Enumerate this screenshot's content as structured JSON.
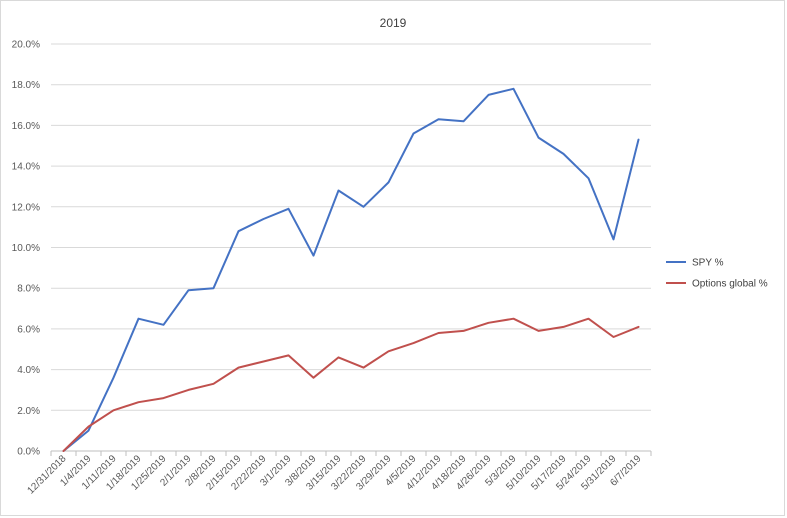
{
  "chart_data": {
    "type": "line",
    "title": "2019",
    "xlabel": "",
    "ylabel": "",
    "categories": [
      "12/31/2018",
      "1/4/2019",
      "1/11/2019",
      "1/18/2019",
      "1/25/2019",
      "2/1/2019",
      "2/8/2019",
      "2/15/2019",
      "2/22/2019",
      "3/1/2019",
      "3/8/2019",
      "3/15/2019",
      "3/22/2019",
      "3/29/2019",
      "4/5/2019",
      "4/12/2019",
      "4/18/2019",
      "4/26/2019",
      "5/3/2019",
      "5/10/2019",
      "5/17/2019",
      "5/24/2019",
      "5/31/2019",
      "6/7/2019"
    ],
    "ylim": [
      0,
      0.2
    ],
    "yticks": [
      "0.0%",
      "2.0%",
      "4.0%",
      "6.0%",
      "8.0%",
      "10.0%",
      "12.0%",
      "14.0%",
      "16.0%",
      "18.0%",
      "20.0%"
    ],
    "grid": true,
    "legend_position": "right",
    "series": [
      {
        "name": "SPY %",
        "color": "#4472c4",
        "values": [
          0.0,
          0.01,
          0.036,
          0.065,
          0.062,
          0.079,
          0.08,
          0.108,
          0.114,
          0.119,
          0.096,
          0.128,
          0.12,
          0.132,
          0.156,
          0.163,
          0.162,
          0.175,
          0.178,
          0.154,
          0.146,
          0.134,
          0.104,
          0.153
        ]
      },
      {
        "name": "Options global %",
        "color": "#c0504d",
        "values": [
          0.0,
          0.012,
          0.02,
          0.024,
          0.026,
          0.03,
          0.033,
          0.041,
          0.044,
          0.047,
          0.036,
          0.046,
          0.041,
          0.049,
          0.053,
          0.058,
          0.059,
          0.063,
          0.065,
          0.059,
          0.061,
          0.065,
          0.056,
          0.061
        ]
      }
    ]
  }
}
